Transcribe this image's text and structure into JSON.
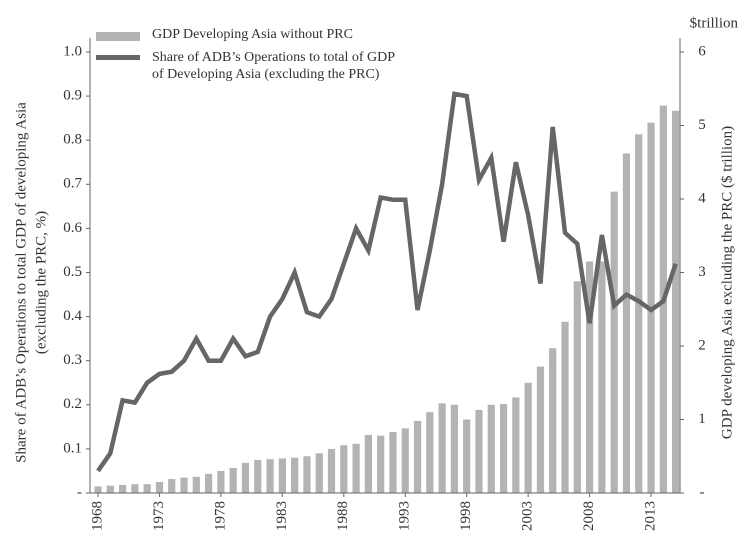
{
  "chart_data": {
    "type": "bar_line",
    "ylabel": [
      "Share of ADB’s Operations to total GDP of developing Asia",
      "(excluding the PRC, %)"
    ],
    "y2label": "GDP developing Asia excluding the PRC ($ trillion)",
    "y2unit": "$trillion",
    "categories": [
      "1968",
      null,
      null,
      null,
      null,
      "1973",
      null,
      null,
      null,
      null,
      "1978",
      null,
      null,
      null,
      null,
      "1983",
      null,
      null,
      null,
      null,
      "1988",
      null,
      null,
      null,
      null,
      "1993",
      null,
      null,
      null,
      null,
      "1998",
      null,
      null,
      null,
      null,
      "2003",
      null,
      null,
      null,
      null,
      "2008",
      null,
      null,
      null,
      null,
      "2013",
      null,
      null
    ],
    "series": [
      {
        "name": "GDP Developing Asia without PRC",
        "color": "#b3b3b3",
        "kind": "bar",
        "axis": "y2",
        "values": [
          0.09,
          0.1,
          0.11,
          0.12,
          0.12,
          0.15,
          0.19,
          0.21,
          0.22,
          0.26,
          0.3,
          0.34,
          0.41,
          0.45,
          0.46,
          0.47,
          0.48,
          0.5,
          0.54,
          0.6,
          0.65,
          0.67,
          0.79,
          0.78,
          0.83,
          0.88,
          0.98,
          1.1,
          1.22,
          1.2,
          1.0,
          1.13,
          1.2,
          1.21,
          1.3,
          1.5,
          1.72,
          1.97,
          2.33,
          2.88,
          3.15,
          3.15,
          4.1,
          4.62,
          4.88,
          5.04,
          5.27,
          5.2
        ]
      },
      {
        "name": "Share of ADB’s Operations to total of GDP of Developing Asia (excluding the PRC)",
        "color": "#666666",
        "kind": "line",
        "values": [
          0.05,
          0.09,
          0.21,
          0.205,
          0.25,
          0.27,
          0.275,
          0.3,
          0.35,
          0.3,
          0.3,
          0.35,
          0.31,
          0.32,
          0.4,
          0.44,
          0.5,
          0.41,
          0.4,
          0.44,
          0.52,
          0.6,
          0.55,
          0.67,
          0.665,
          0.665,
          0.415,
          0.55,
          0.7,
          0.905,
          0.9,
          0.71,
          0.76,
          0.57,
          0.75,
          0.63,
          0.475,
          0.83,
          0.59,
          0.565,
          0.385,
          0.585,
          0.425,
          0.45,
          0.435,
          0.415,
          0.435,
          0.52
        ]
      }
    ],
    "ylim": [
      0,
      1
    ],
    "yticks": [
      {
        "value": 0,
        "label": "-"
      },
      0.1,
      0.2,
      0.3,
      0.4,
      0.5,
      0.6,
      0.7,
      0.8,
      0.9,
      {
        "value": 1,
        "label": "1.0"
      }
    ],
    "y2lim": [
      0,
      6
    ],
    "y2ticks": [
      {
        "value": 0,
        "label": "-"
      },
      1,
      2,
      3,
      4,
      5,
      6
    ],
    "grid": false
  }
}
